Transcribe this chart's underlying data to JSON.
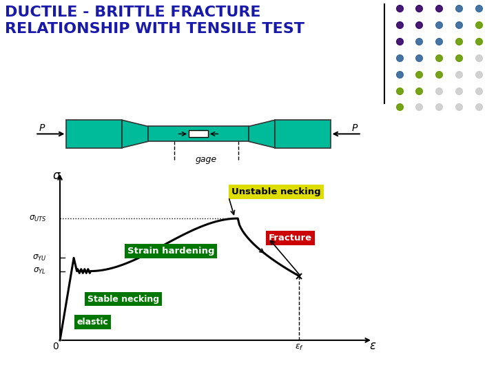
{
  "title_line1": "DUCTILE - BRITTLE FRACTURE",
  "title_line2": "RELATIONSHIP WITH TENSILE TEST",
  "title_color": "#1a1aaa",
  "title_fontsize": 16,
  "bg_color": "#FFFFFF",
  "specimen_color": "#00BB99",
  "curve_color": "#000000",
  "labels": {
    "elastic": "elastic",
    "stable_necking": "Stable necking",
    "strain_hardening": "Strain hardening",
    "unstable_necking": "Unstable necking",
    "fracture": "Fracture"
  },
  "label_bg_colors": {
    "elastic": "#007700",
    "stable_necking": "#007700",
    "strain_hardening": "#007700",
    "unstable_necking": "#DDDD00",
    "fracture": "#CC0000"
  },
  "label_text_colors": {
    "elastic": "#FFFFFF",
    "stable_necking": "#FFFFFF",
    "strain_hardening": "#FFFFFF",
    "unstable_necking": "#000000",
    "fracture": "#FFFFFF"
  },
  "dot_grid": [
    [
      "#330066",
      "#330066",
      "#330066",
      "#336699",
      "#336699"
    ],
    [
      "#330066",
      "#330066",
      "#336699",
      "#336699",
      "#669900"
    ],
    [
      "#330066",
      "#336699",
      "#336699",
      "#669900",
      "#669900"
    ],
    [
      "#336699",
      "#336699",
      "#669900",
      "#669900",
      "#CCCCCC"
    ],
    [
      "#336699",
      "#669900",
      "#669900",
      "#CCCCCC",
      "#CCCCCC"
    ],
    [
      "#669900",
      "#669900",
      "#CCCCCC",
      "#CCCCCC",
      "#CCCCCC"
    ],
    [
      "#669900",
      "#CCCCCC",
      "#CCCCCC",
      "#CCCCCC",
      "#CCCCCC"
    ]
  ],
  "sigma_UTS": 7.4,
  "sigma_YU": 5.0,
  "sigma_YL": 4.2,
  "eps_f": 7.8
}
